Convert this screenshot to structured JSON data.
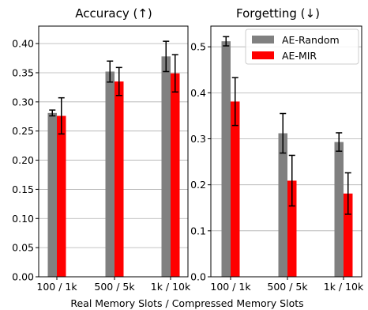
{
  "chart_data": {
    "type": "bar",
    "xlabel": "Real Memory Slots / Compressed Memory Slots",
    "colors": {
      "AE-Random": "#808080",
      "AE-MIR": "#ff0000",
      "error_bar": "#000000",
      "grid": "#b0b0b0"
    },
    "legend": {
      "placement": "top-right",
      "entries": [
        "AE-Random",
        "AE-MIR"
      ]
    },
    "panels": [
      {
        "title": "Accuracy (↑)",
        "categories": [
          "100 / 1k",
          "500 / 5k",
          "1k / 10k"
        ],
        "ylim": [
          0,
          0.43
        ],
        "yticks": [
          "0.00",
          "0.05",
          "0.10",
          "0.15",
          "0.20",
          "0.25",
          "0.30",
          "0.35",
          "0.40"
        ],
        "ytick_values": [
          0,
          0.05,
          0.1,
          0.15,
          0.2,
          0.25,
          0.3,
          0.35,
          0.4
        ],
        "grid": true,
        "show_legend": false,
        "series": [
          {
            "name": "AE-Random",
            "values": [
              0.281,
              0.352,
              0.378
            ],
            "errors": [
              0.005,
              0.018,
              0.026
            ]
          },
          {
            "name": "AE-MIR",
            "values": [
              0.276,
              0.335,
              0.349
            ],
            "errors": [
              0.031,
              0.024,
              0.032
            ]
          }
        ]
      },
      {
        "title": "Forgetting (↓)",
        "categories": [
          "100 / 1k",
          "500 / 5k",
          "1k / 10k"
        ],
        "ylim": [
          0,
          0.545
        ],
        "yticks": [
          "0.0",
          "0.1",
          "0.2",
          "0.3",
          "0.4",
          "0.5"
        ],
        "ytick_values": [
          0,
          0.1,
          0.2,
          0.3,
          0.4,
          0.5
        ],
        "grid": true,
        "show_legend": true,
        "series": [
          {
            "name": "AE-Random",
            "values": [
              0.512,
              0.312,
              0.293
            ],
            "errors": [
              0.01,
              0.043,
              0.02
            ]
          },
          {
            "name": "AE-MIR",
            "values": [
              0.381,
              0.209,
              0.181
            ],
            "errors": [
              0.052,
              0.055,
              0.045
            ]
          }
        ]
      }
    ]
  }
}
